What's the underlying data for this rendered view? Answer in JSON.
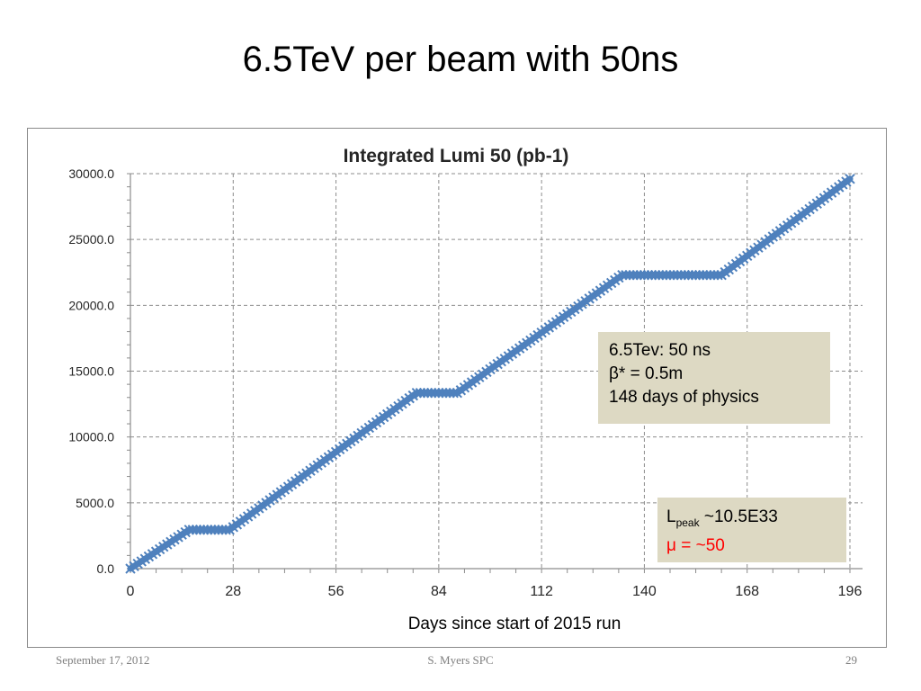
{
  "slide": {
    "title": "6.5TeV per beam with 50ns",
    "footer_date": "September 17, 2012",
    "footer_author": "S. Myers SPC",
    "footer_page": "29"
  },
  "annotations": {
    "box1_line1": "6.5Tev: 50 ns",
    "box1_line2": "β* = 0.5m",
    "box1_line3": "148 days of physics",
    "box2_l": "L",
    "box2_sub": "peak",
    "box2_rest": " ~10.5E33",
    "box2_mu": "μ = ~50"
  },
  "colors": {
    "series": "#4f81bd",
    "annotation_bg": "#ddd9c3",
    "mu_text": "#ff0000"
  },
  "chart_data": {
    "type": "line",
    "title": "Integrated Lumi 50 (pb-1)",
    "xlabel": "Days since start of 2015 run",
    "ylabel": "",
    "xlim": [
      0,
      196
    ],
    "ylim": [
      0,
      30000
    ],
    "x_ticks": [
      "0",
      "28",
      "56",
      "84",
      "112",
      "140",
      "168",
      "196"
    ],
    "y_ticks": [
      "0.0",
      "5000.0",
      "10000.0",
      "15000.0",
      "20000.0",
      "25000.0",
      "30000.0"
    ],
    "grid": true,
    "marker": "x",
    "series": [
      {
        "x": [
          0,
          16,
          27,
          78,
          89,
          134,
          161,
          196
        ],
        "y": [
          0,
          2950,
          2950,
          13350,
          13350,
          22300,
          22300,
          29600
        ]
      }
    ]
  }
}
